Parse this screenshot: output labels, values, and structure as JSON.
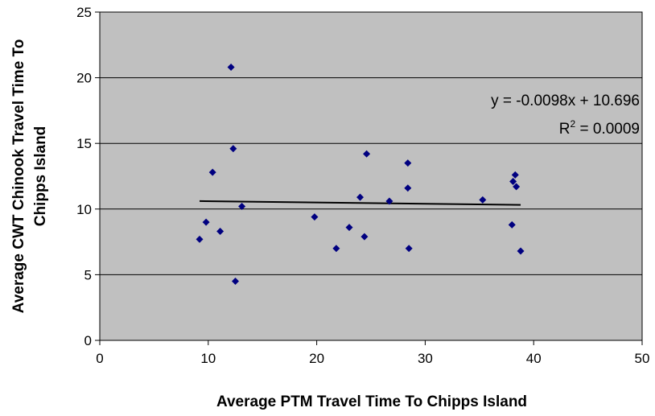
{
  "chart_data": {
    "type": "scatter",
    "title": "",
    "xlabel": "Average PTM Travel Time To Chipps Island",
    "ylabel_line1": "Average CWT Chinook Travel Time To",
    "ylabel_line2": "Chipps Island",
    "xlim": [
      0,
      50
    ],
    "ylim": [
      0,
      25
    ],
    "x_ticks": [
      0,
      10,
      20,
      30,
      40,
      50
    ],
    "y_ticks": [
      0,
      5,
      10,
      15,
      20,
      25
    ],
    "grid": "horizontal",
    "plot_background": "#c0c0c0",
    "marker_color": "#000080",
    "trendline_color": "#000000",
    "points": [
      {
        "x": 9.2,
        "y": 7.7
      },
      {
        "x": 9.8,
        "y": 9.0
      },
      {
        "x": 10.4,
        "y": 12.8
      },
      {
        "x": 11.1,
        "y": 8.3
      },
      {
        "x": 12.1,
        "y": 20.8
      },
      {
        "x": 12.3,
        "y": 14.6
      },
      {
        "x": 12.5,
        "y": 4.5
      },
      {
        "x": 13.1,
        "y": 10.2
      },
      {
        "x": 19.8,
        "y": 9.4
      },
      {
        "x": 21.8,
        "y": 7.0
      },
      {
        "x": 23.0,
        "y": 8.6
      },
      {
        "x": 24.0,
        "y": 10.9
      },
      {
        "x": 24.4,
        "y": 7.9
      },
      {
        "x": 24.6,
        "y": 14.2
      },
      {
        "x": 26.7,
        "y": 10.6
      },
      {
        "x": 28.4,
        "y": 13.5
      },
      {
        "x": 28.4,
        "y": 11.6
      },
      {
        "x": 28.5,
        "y": 7.0
      },
      {
        "x": 35.3,
        "y": 10.7
      },
      {
        "x": 38.0,
        "y": 8.8
      },
      {
        "x": 38.1,
        "y": 12.1
      },
      {
        "x": 38.3,
        "y": 12.6
      },
      {
        "x": 38.4,
        "y": 11.7
      },
      {
        "x": 38.8,
        "y": 6.8
      }
    ],
    "trendline": {
      "slope": -0.0098,
      "intercept": 10.696,
      "x_range": [
        9.2,
        38.8
      ],
      "equation_label": "y = -0.0098x + 10.696",
      "r2_prefix": "R",
      "r2_superscript": "2",
      "r2_value_text": " = 0.0009"
    }
  }
}
